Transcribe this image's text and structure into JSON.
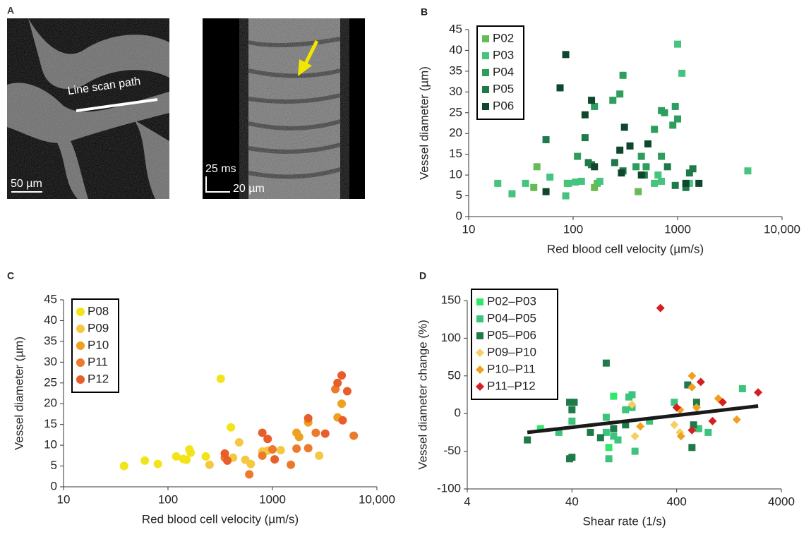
{
  "panels": [
    "A",
    "B",
    "C",
    "D"
  ],
  "images": {
    "line_scan_label": "Line scan path",
    "scale_left": "50 µm",
    "scale_time": "25 ms",
    "scale_right": "20 µm"
  },
  "chart_data": [
    {
      "type": "scatter",
      "xlabel": "Red blood cell velocity (µm/s)",
      "ylabel": "Vessel diameter (µm)",
      "xscale": "log",
      "xlim": [
        10,
        10000
      ],
      "xticks": [
        10,
        100,
        1000,
        {
          "value": 10000,
          "label": "10,000"
        }
      ],
      "ylim": [
        0,
        45
      ],
      "yticks": [
        0,
        5,
        10,
        15,
        20,
        25,
        30,
        35,
        40,
        45
      ],
      "series": [
        {
          "name": "P02",
          "color": "#66bb55",
          "marker": "square",
          "x": [
            42,
            45,
            160,
            170,
            420,
            88
          ],
          "values": [
            7,
            12,
            7,
            8,
            6,
            8
          ]
        },
        {
          "name": "P03",
          "color": "#44c47e",
          "marker": "square",
          "x": [
            19,
            26,
            35,
            60,
            85,
            90,
            105,
            120,
            180,
            600,
            650,
            700,
            1300,
            1000,
            1100,
            4700
          ],
          "values": [
            8,
            5.5,
            8,
            9.5,
            5,
            8,
            8.3,
            8.5,
            8.5,
            8,
            10,
            8.5,
            8,
            41.5,
            34.5,
            11
          ]
        },
        {
          "name": "P04",
          "color": "#2e9e5e",
          "marker": "square",
          "x": [
            160,
            240,
            280,
            300,
            400,
            450,
            500,
            600,
            700,
            750,
            900,
            950,
            1000,
            700,
            350,
            110
          ],
          "values": [
            26.5,
            28,
            29.5,
            34,
            12,
            14.5,
            12,
            21,
            25.5,
            25,
            22,
            26.5,
            23.5,
            14.5,
            17,
            14.5
          ]
        },
        {
          "name": "P05",
          "color": "#1f7a4a",
          "marker": "square",
          "x": [
            55,
            130,
            140,
            150,
            250,
            300,
            480,
            800,
            1200,
            1300,
            1400,
            950
          ],
          "values": [
            18.5,
            19,
            13,
            12.5,
            13,
            11,
            10,
            12,
            7,
            10.5,
            11.5,
            7.5
          ]
        },
        {
          "name": "P06",
          "color": "#0f472c",
          "marker": "square",
          "x": [
            55,
            75,
            85,
            130,
            150,
            160,
            280,
            310,
            350,
            450,
            520,
            1200,
            1600,
            290
          ],
          "values": [
            6,
            31,
            39,
            24.5,
            28,
            12,
            16,
            21.5,
            17,
            10,
            17.5,
            8,
            8,
            10.5
          ]
        }
      ]
    },
    {
      "type": "scatter",
      "xlabel": "Red blood cell velocity (µm/s)",
      "ylabel": "Vessel diameter (µm)",
      "xscale": "log",
      "xlim": [
        10,
        10000
      ],
      "xticks": [
        10,
        100,
        1000,
        {
          "value": 10000,
          "label": "10,000"
        }
      ],
      "ylim": [
        0,
        45
      ],
      "yticks": [
        0,
        5,
        10,
        15,
        20,
        25,
        30,
        35,
        40,
        45
      ],
      "series": [
        {
          "name": "P08",
          "color": "#f2e418",
          "marker": "circle",
          "x": [
            38,
            60,
            80,
            120,
            140,
            150,
            160,
            165,
            230,
            320,
            400
          ],
          "values": [
            5,
            6.3,
            5.5,
            7.3,
            6.7,
            6.5,
            9,
            8.2,
            7.3,
            26,
            14.3
          ]
        },
        {
          "name": "P09",
          "color": "#f5c842",
          "marker": "circle",
          "x": [
            250,
            420,
            480,
            550,
            620,
            800,
            900,
            1200,
            2800
          ],
          "values": [
            5.3,
            7,
            10.7,
            6.5,
            5.5,
            8.5,
            8.7,
            8.8,
            7.5
          ]
        },
        {
          "name": "P10",
          "color": "#f0a020",
          "marker": "circle",
          "x": [
            1700,
            1800,
            4200,
            4600,
            2200
          ],
          "values": [
            13,
            12,
            16.7,
            20,
            15.5
          ]
        },
        {
          "name": "P11",
          "color": "#ec7a2a",
          "marker": "circle",
          "x": [
            800,
            1000,
            1500,
            1700,
            2200,
            2600,
            4000,
            6000,
            350,
            600
          ],
          "values": [
            7.5,
            9,
            5.3,
            9.2,
            9.3,
            13,
            23.5,
            12.3,
            7,
            3
          ]
        },
        {
          "name": "P12",
          "color": "#e85e2a",
          "marker": "circle",
          "x": [
            350,
            370,
            800,
            900,
            1050,
            2200,
            3200,
            4200,
            4600,
            5200,
            4700
          ],
          "values": [
            8,
            6.3,
            13,
            11.5,
            6.6,
            16.5,
            12.8,
            25,
            26.8,
            23,
            16
          ]
        }
      ]
    },
    {
      "type": "scatter",
      "xlabel": "Shear rate (1/s)",
      "ylabel": "Vessel diameter change (%)",
      "xscale": "log",
      "xlim": [
        4,
        4000
      ],
      "xticks": [
        4,
        40,
        400,
        4000
      ],
      "ylim": [
        -100,
        150
      ],
      "yticks": [
        -100,
        -50,
        0,
        50,
        100,
        150
      ],
      "trend": {
        "color": "#1a1a1a",
        "x": [
          15,
          2400
        ],
        "values": [
          -25,
          10
        ]
      },
      "series": [
        {
          "name": "P02–P03",
          "color": "#2ee86a",
          "marker": "square",
          "x": [
            20,
            100,
            90
          ],
          "values": [
            -20,
            23,
            -45
          ]
        },
        {
          "name": "P04–P05",
          "color": "#3cc47c",
          "marker": "square",
          "x": [
            30,
            40,
            85,
            90,
            100,
            130,
            140,
            150,
            150,
            160,
            110,
            220,
            380,
            800,
            1700,
            650,
            85
          ],
          "values": [
            -25,
            -10,
            -25,
            -60,
            -30,
            5,
            22,
            25,
            8,
            -50,
            -35,
            -10,
            15,
            -25,
            33,
            -20,
            -5
          ]
        },
        {
          "name": "P05–P06",
          "color": "#1f7a4a",
          "marker": "square",
          "x": [
            15,
            38,
            40,
            38,
            40,
            42,
            60,
            75,
            85,
            130,
            510,
            560,
            620,
            580,
            100
          ],
          "values": [
            -35,
            -60,
            -58,
            15,
            5,
            15,
            -25,
            -32,
            67,
            -15,
            38,
            -45,
            15,
            -15,
            -20
          ]
        },
        {
          "name": "P09–P10",
          "color": "#f5d060",
          "marker": "diamond",
          "x": [
            150,
            160,
            380,
            430
          ],
          "values": [
            12,
            -30,
            -15,
            -25
          ]
        },
        {
          "name": "P10–P11",
          "color": "#f0a020",
          "marker": "diamond",
          "x": [
            560,
            560,
            180,
            440,
            620,
            1000,
            1500,
            430
          ],
          "values": [
            50,
            35,
            -17,
            -30,
            8,
            20,
            -8,
            5
          ]
        },
        {
          "name": "P11–P12",
          "color": "#d42020",
          "marker": "diamond",
          "x": [
            280,
            400,
            560,
            680,
            880,
            1100,
            2400
          ],
          "values": [
            140,
            8,
            -22,
            42,
            -10,
            15,
            28
          ]
        }
      ]
    }
  ]
}
